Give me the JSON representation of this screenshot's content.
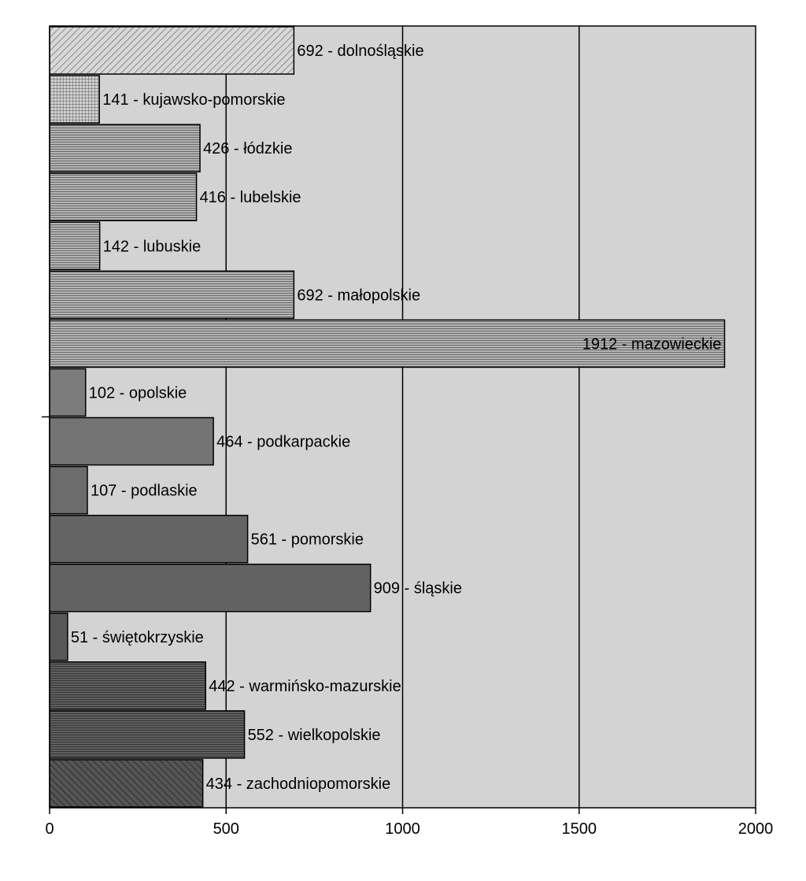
{
  "chart_data": {
    "type": "bar",
    "orientation": "horizontal",
    "title": "",
    "xlabel": "",
    "ylabel": "",
    "xlim": [
      0,
      2000
    ],
    "x_ticks": [
      0,
      500,
      1000,
      1500,
      2000
    ],
    "grid": "vertical lines at major ticks",
    "legend": "none",
    "plot_background": "#d3d3d3",
    "categories": [
      "dolnośląskie",
      "kujawsko-pomorskie",
      "łódzkie",
      "lubelskie",
      "lubuskie",
      "małopolskie",
      "mazowieckie",
      "opolskie",
      "podkarpackie",
      "podlaskie",
      "pomorskie",
      "śląskie",
      "świętokrzyskie",
      "warmińsko-mazurskie",
      "wielkopolskie",
      "zachodniopomorskie"
    ],
    "values": [
      692,
      141,
      426,
      416,
      142,
      692,
      1912,
      102,
      464,
      107,
      561,
      909,
      51,
      442,
      552,
      434
    ],
    "data_labels": [
      "692 - dolnośląskie",
      "141 - kujawsko-pomorskie",
      "426 - łódzkie",
      "416 - lubelskie",
      "142 - lubuskie",
      "692 - małopolskie",
      "1912 - mazowieckie",
      "102 - opolskie",
      "464 - podkarpackie",
      "107 - podlaskie",
      "561 - pomorskie",
      "909 - śląskie",
      "51 - świętokrzyskie",
      "442 - warmińsko-mazurskie",
      "552 - wielkopolskie",
      "434 - zachodniopomorskie"
    ],
    "bar_fills": [
      "#c8c8c8",
      "#b0b0b0",
      "#9c9c9c",
      "#989898",
      "#8e8e8e",
      "#888888",
      "#828282",
      "#7c7c7c",
      "#747474",
      "#6c6c6c",
      "#646464",
      "#626262",
      "#585858",
      "#4e4e4e",
      "#464646",
      "#505050"
    ]
  }
}
